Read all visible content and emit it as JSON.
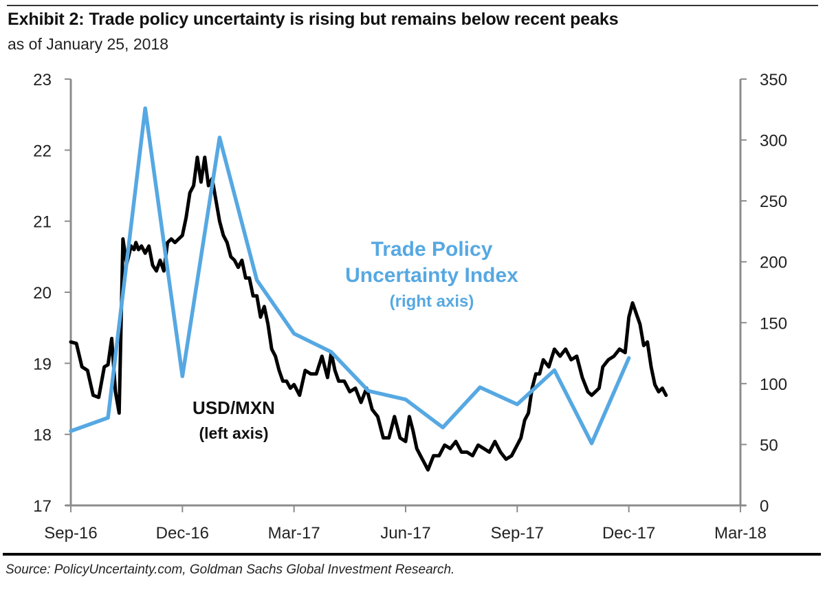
{
  "header": {
    "title": "Exhibit 2: Trade policy uncertainty is rising but remains below recent peaks",
    "subtitle": "as of January 25, 2018"
  },
  "footer": {
    "source": "Source: PolicyUncertainty.com, Goldman Sachs Global Investment Research."
  },
  "colors": {
    "usdmxn": "#000000",
    "tpu": "#56A8E2",
    "axis": "#8c8c8c"
  },
  "chart_data": {
    "type": "line",
    "title": "Exhibit 2: Trade policy uncertainty is rising but remains below recent peaks",
    "subtitle": "as of January 25, 2018",
    "xlabel": "",
    "x_ticks": [
      "Sep-16",
      "Dec-16",
      "Mar-17",
      "Jun-17",
      "Sep-17",
      "Dec-17",
      "Mar-18"
    ],
    "x_range_months": [
      0,
      18
    ],
    "y_left": {
      "label": "USD/MXN",
      "range": [
        17,
        23
      ],
      "ticks": [
        17,
        18,
        19,
        20,
        21,
        22,
        23
      ]
    },
    "y_right": {
      "label": "Trade Policy Uncertainty Index",
      "range": [
        0,
        350
      ],
      "ticks": [
        0,
        50,
        100,
        150,
        200,
        250,
        300,
        350
      ]
    },
    "grid": false,
    "annotations": [
      {
        "name": "usdmxn-label",
        "lines": [
          "USD/MXN",
          "(left axis)"
        ],
        "color": "#111111"
      },
      {
        "name": "tpu-label",
        "lines": [
          "Trade Policy",
          "Uncertainty Index",
          "(right axis)"
        ],
        "color": "#56A8E2"
      }
    ],
    "series": [
      {
        "name": "Trade Policy Uncertainty Index",
        "axis": "right",
        "note": "x in months since Sep-16",
        "x": [
          0,
          1,
          2,
          3,
          4,
          5,
          6,
          7,
          8,
          9,
          10,
          11,
          12,
          13,
          14,
          15
        ],
        "dates": [
          "Sep-16",
          "Oct-16",
          "Nov-16",
          "Dec-16",
          "Jan-17",
          "Feb-17",
          "Mar-17",
          "Apr-17",
          "May-17",
          "Jun-17",
          "Jul-17",
          "Aug-17",
          "Sep-17",
          "Oct-17",
          "Nov-17",
          "Dec-17"
        ],
        "values": [
          61,
          72,
          326,
          106,
          302,
          185,
          141,
          126,
          94,
          87,
          64,
          97,
          83,
          111,
          51,
          121
        ]
      },
      {
        "name": "USD/MXN",
        "axis": "left",
        "note": "x in months since Sep-16 (approx. traced)",
        "x": [
          0.0,
          0.15,
          0.3,
          0.45,
          0.6,
          0.75,
          0.9,
          1.0,
          1.1,
          1.2,
          1.3,
          1.4,
          1.5,
          1.55,
          1.62,
          1.7,
          1.75,
          1.82,
          1.9,
          2.0,
          2.1,
          2.2,
          2.3,
          2.4,
          2.5,
          2.6,
          2.7,
          2.8,
          2.9,
          3.0,
          3.1,
          3.2,
          3.3,
          3.4,
          3.5,
          3.6,
          3.7,
          3.8,
          3.9,
          4.0,
          4.1,
          4.2,
          4.3,
          4.4,
          4.5,
          4.6,
          4.7,
          4.8,
          4.9,
          5.0,
          5.1,
          5.2,
          5.3,
          5.4,
          5.5,
          5.6,
          5.7,
          5.8,
          5.9,
          6.0,
          6.15,
          6.3,
          6.45,
          6.6,
          6.75,
          6.9,
          7.0,
          7.1,
          7.2,
          7.35,
          7.5,
          7.65,
          7.8,
          7.95,
          8.1,
          8.25,
          8.4,
          8.55,
          8.7,
          8.85,
          9.0,
          9.1,
          9.2,
          9.3,
          9.4,
          9.5,
          9.6,
          9.75,
          9.9,
          10.05,
          10.2,
          10.35,
          10.5,
          10.65,
          10.8,
          10.95,
          11.1,
          11.25,
          11.4,
          11.55,
          11.7,
          11.85,
          12.0,
          12.1,
          12.2,
          12.3,
          12.4,
          12.5,
          12.6,
          12.7,
          12.85,
          13.0,
          13.15,
          13.3,
          13.45,
          13.6,
          13.75,
          13.9,
          14.0,
          14.1,
          14.2,
          14.3,
          14.45,
          14.6,
          14.75,
          14.9,
          15.0,
          15.1,
          15.2,
          15.3,
          15.4,
          15.5,
          15.6,
          15.7,
          15.8,
          15.9,
          16.0
        ],
        "values": [
          19.3,
          19.28,
          18.95,
          18.9,
          18.55,
          18.52,
          18.95,
          18.98,
          19.35,
          18.6,
          18.3,
          20.75,
          20.4,
          20.5,
          20.65,
          20.6,
          20.7,
          20.6,
          20.65,
          20.55,
          20.65,
          20.38,
          20.3,
          20.45,
          20.3,
          20.7,
          20.75,
          20.7,
          20.75,
          20.8,
          21.05,
          21.4,
          21.5,
          21.9,
          21.55,
          21.9,
          21.5,
          21.6,
          21.3,
          21.0,
          20.8,
          20.7,
          20.5,
          20.45,
          20.35,
          20.45,
          20.2,
          20.2,
          19.95,
          19.95,
          19.65,
          19.8,
          19.55,
          19.2,
          19.1,
          18.9,
          18.75,
          18.75,
          18.65,
          18.7,
          18.55,
          18.9,
          18.85,
          18.85,
          19.1,
          18.8,
          19.15,
          18.9,
          18.75,
          18.75,
          18.6,
          18.65,
          18.45,
          18.65,
          18.35,
          18.25,
          17.95,
          17.95,
          18.25,
          17.95,
          17.9,
          18.25,
          18.05,
          17.8,
          17.7,
          17.6,
          17.5,
          17.7,
          17.7,
          17.85,
          17.8,
          17.9,
          17.75,
          17.75,
          17.7,
          17.85,
          17.8,
          17.75,
          17.9,
          17.75,
          17.65,
          17.7,
          17.85,
          17.95,
          18.2,
          18.3,
          18.65,
          18.85,
          18.85,
          19.05,
          18.95,
          19.2,
          19.1,
          19.2,
          19.05,
          19.1,
          18.8,
          18.6,
          18.55,
          18.6,
          18.65,
          18.95,
          19.05,
          19.1,
          19.2,
          19.15,
          19.65,
          19.85,
          19.7,
          19.55,
          19.25,
          19.3,
          18.95,
          18.7,
          18.6,
          18.65,
          18.55
        ]
      }
    ]
  }
}
